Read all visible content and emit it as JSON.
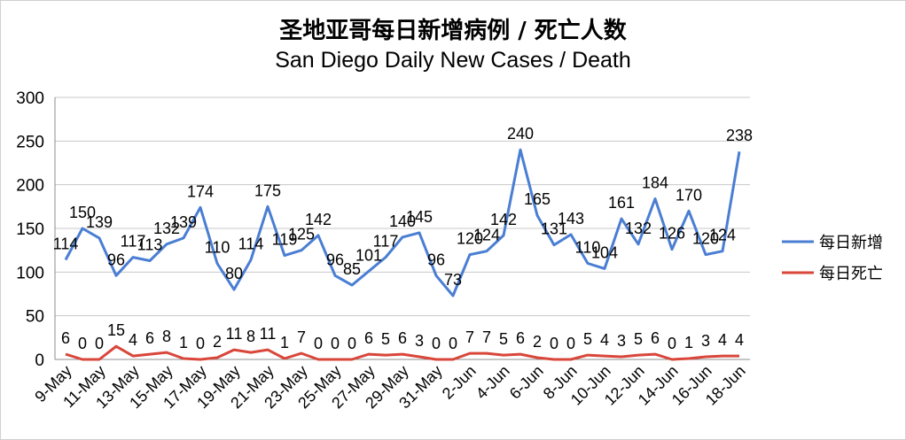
{
  "chart_data": {
    "type": "line",
    "title": "圣地亚哥每日新增病例 / 死亡人数",
    "subtitle": "San Diego Daily New Cases / Death",
    "xlabel": "",
    "ylabel": "",
    "ylim": [
      0,
      300
    ],
    "yticks": [
      "0",
      "50",
      "100",
      "150",
      "200",
      "250",
      "300"
    ],
    "grid": true,
    "legend": "right",
    "categories": [
      "9-May",
      "10-May",
      "11-May",
      "12-May",
      "13-May",
      "14-May",
      "15-May",
      "16-May",
      "17-May",
      "18-May",
      "19-May",
      "20-May",
      "21-May",
      "22-May",
      "23-May",
      "24-May",
      "25-May",
      "26-May",
      "27-May",
      "28-May",
      "29-May",
      "30-May",
      "31-May",
      "1-Jun",
      "2-Jun",
      "3-Jun",
      "4-Jun",
      "5-Jun",
      "6-Jun",
      "7-Jun",
      "8-Jun",
      "9-Jun",
      "10-Jun",
      "11-Jun",
      "12-Jun",
      "13-Jun",
      "14-Jun",
      "15-Jun",
      "16-Jun",
      "17-Jun",
      "18-Jun"
    ],
    "xtick_labels": [
      "9-May",
      "11-May",
      "13-May",
      "15-May",
      "17-May",
      "19-May",
      "21-May",
      "23-May",
      "25-May",
      "27-May",
      "29-May",
      "31-May",
      "2-Jun",
      "4-Jun",
      "6-Jun",
      "8-Jun",
      "10-Jun",
      "12-Jun",
      "14-Jun",
      "16-Jun",
      "18-Jun"
    ],
    "series": [
      {
        "name": "每日新增",
        "color": "#4a7ed3",
        "values": [
          114,
          150,
          139,
          96,
          117,
          113,
          132,
          139,
          174,
          110,
          80,
          114,
          175,
          119,
          125,
          142,
          96,
          85,
          101,
          117,
          140,
          145,
          96,
          73,
          120,
          124,
          142,
          240,
          165,
          131,
          143,
          110,
          104,
          161,
          132,
          184,
          126,
          170,
          120,
          124,
          238
        ]
      },
      {
        "name": "每日死亡",
        "color": "#d9463a",
        "values": [
          6,
          0,
          0,
          15,
          4,
          6,
          8,
          1,
          0,
          2,
          11,
          8,
          11,
          1,
          7,
          0,
          0,
          0,
          6,
          5,
          6,
          3,
          0,
          0,
          7,
          7,
          5,
          6,
          2,
          0,
          0,
          5,
          4,
          3,
          5,
          6,
          0,
          1,
          3,
          4,
          4
        ]
      }
    ]
  }
}
